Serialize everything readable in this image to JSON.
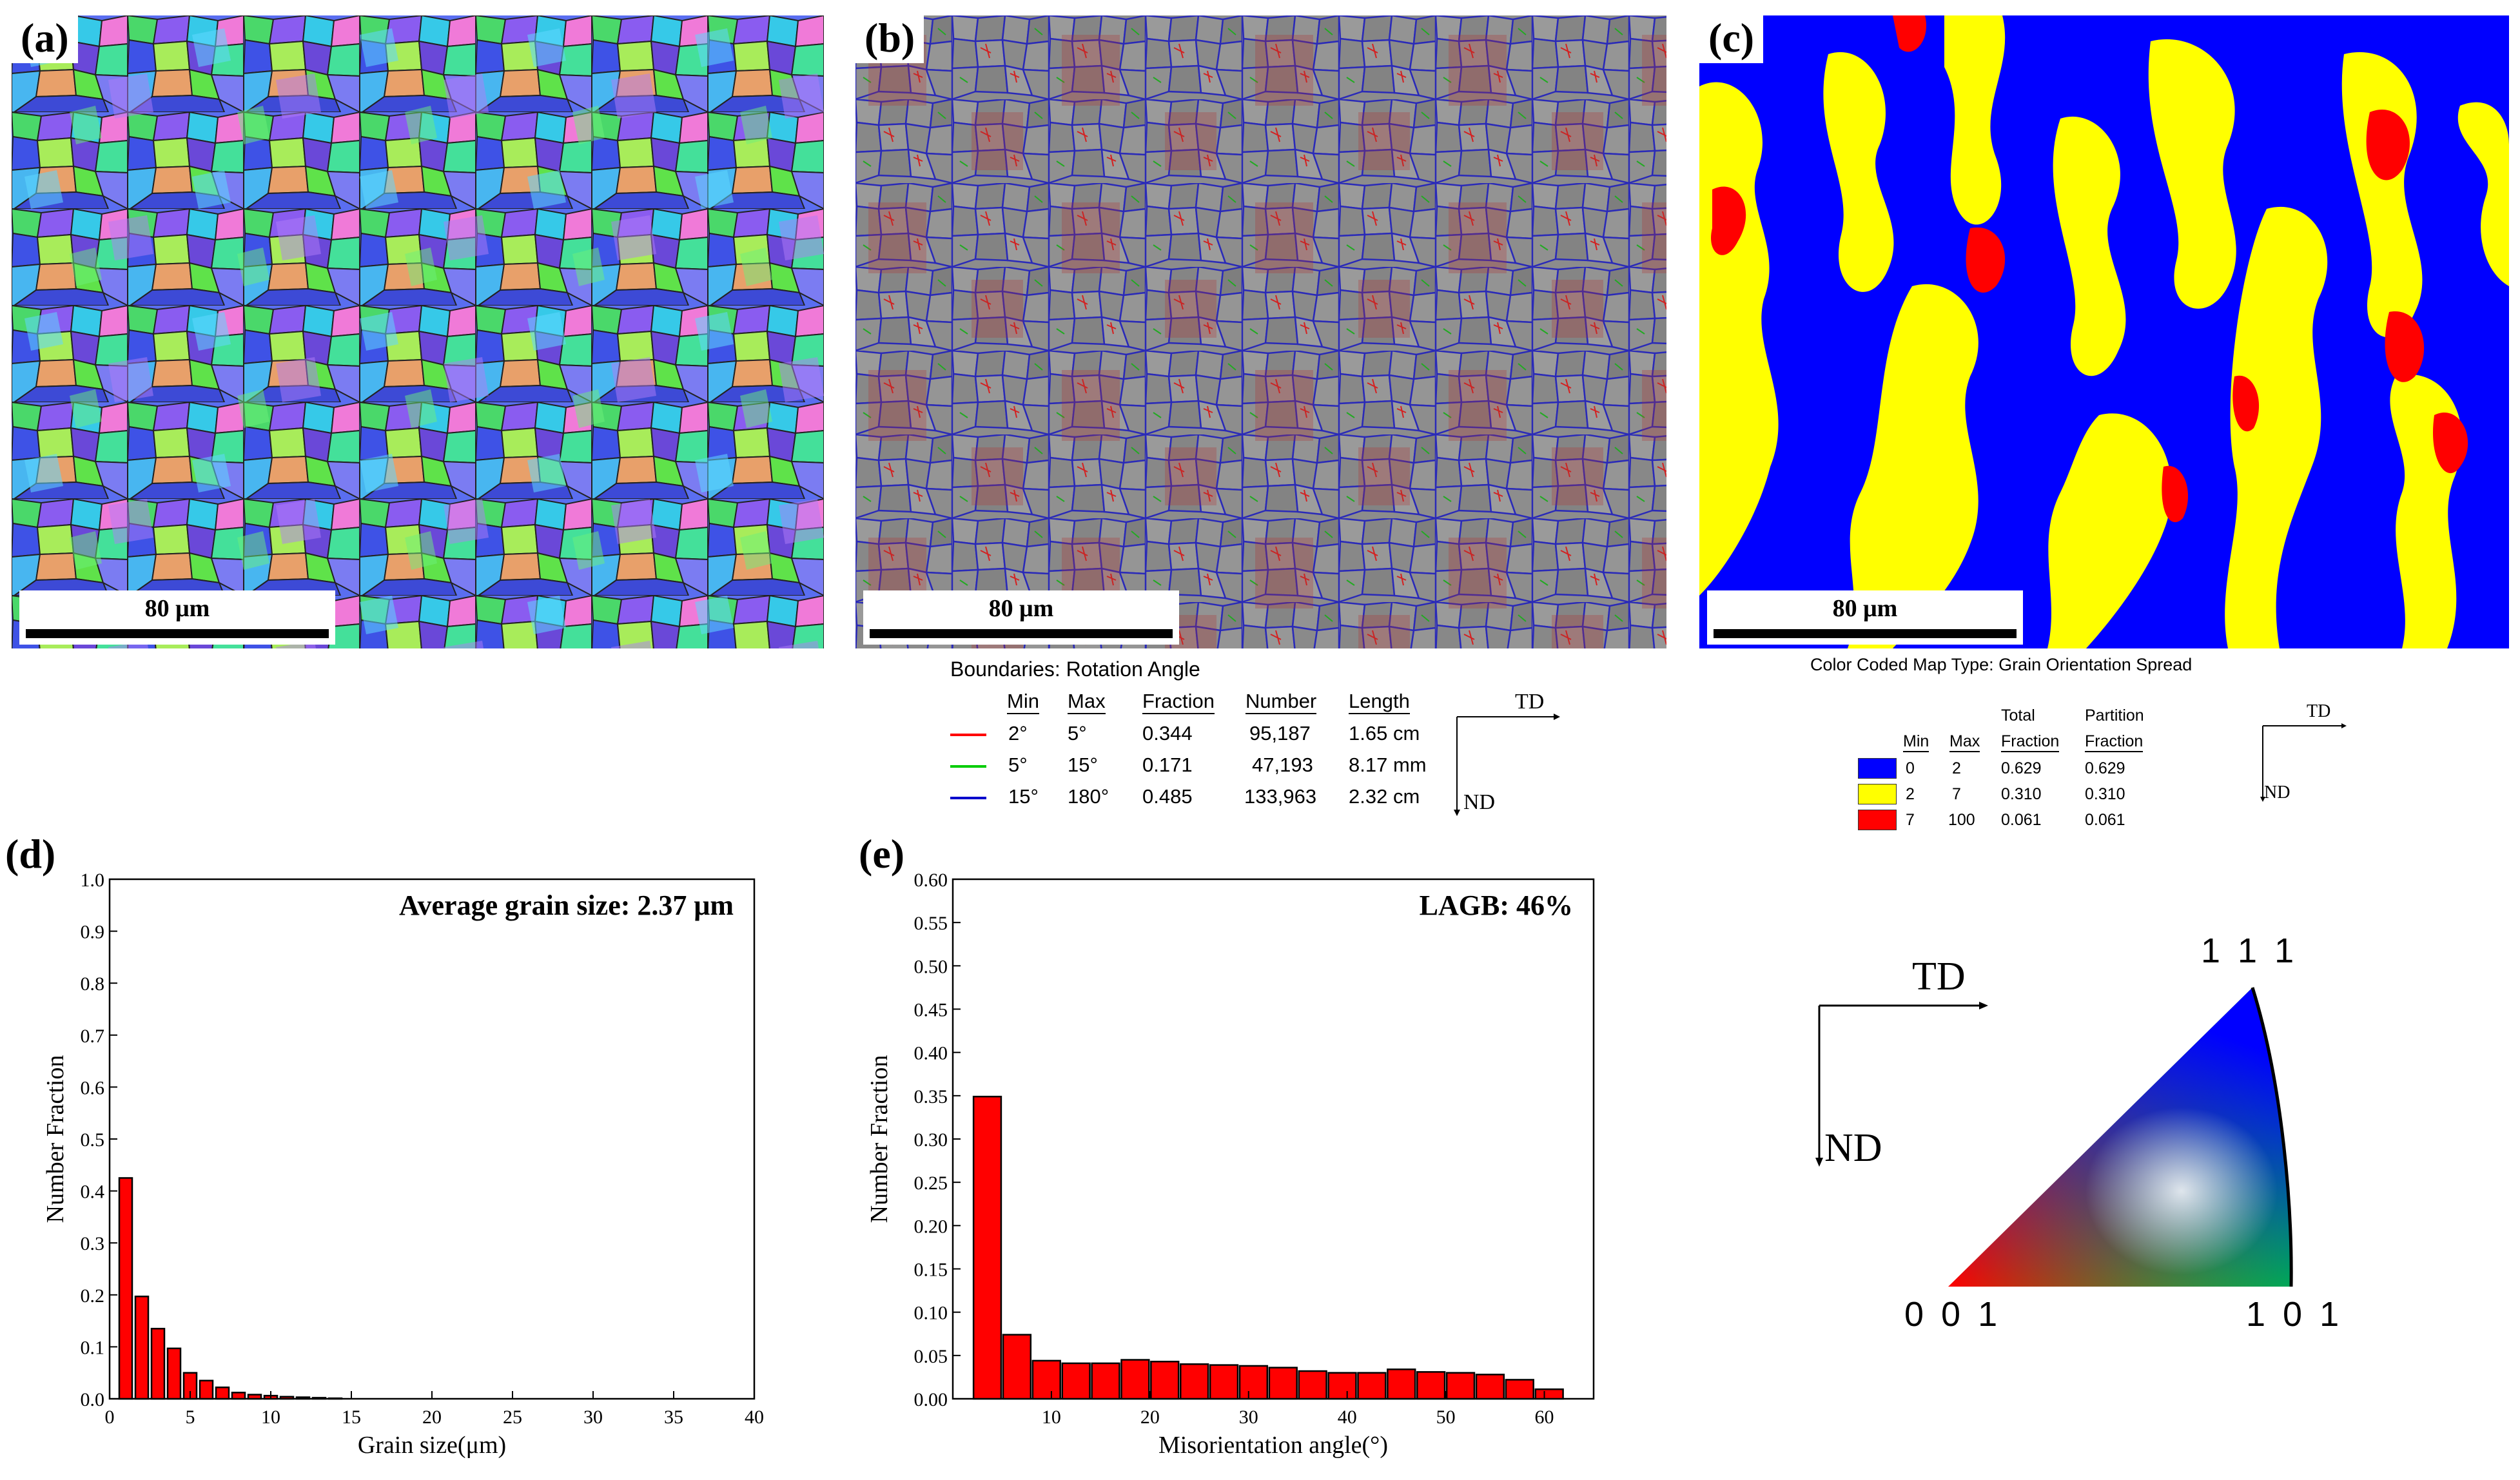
{
  "panels": {
    "a": {
      "label": "(a)",
      "scale": "80 μm"
    },
    "b": {
      "label": "(b)",
      "scale": "80 μm"
    },
    "c": {
      "label": "(c)",
      "scale": "80 μm"
    },
    "d": {
      "label": "(d)"
    },
    "e": {
      "label": "(e)"
    }
  },
  "boundaries": {
    "title": "Boundaries: Rotation Angle",
    "headers": [
      "Min",
      "Max",
      "Fraction",
      "Number",
      "Length"
    ],
    "rows": [
      {
        "min": "2°",
        "max": "5°",
        "fraction": "0.344",
        "number": "95,187",
        "length": "1.65 cm",
        "color": "#ff0000"
      },
      {
        "min": "5°",
        "max": "15°",
        "fraction": "0.171",
        "number": "47,193",
        "length": "8.17 mm",
        "color": "#00cc00"
      },
      {
        "min": "15°",
        "max": "180°",
        "fraction": "0.485",
        "number": "133,963",
        "length": "2.32 cm",
        "color": "#0000cc"
      }
    ],
    "td": "TD",
    "nd": "ND"
  },
  "gos": {
    "title": "Color Coded Map Type: Grain Orientation Spread",
    "headers": [
      "Min",
      "Max",
      "Total Fraction",
      "Partition Fraction"
    ],
    "header_line1": [
      "",
      "",
      "Total",
      "Partition"
    ],
    "header_line2": [
      "Min",
      "Max",
      "Fraction",
      "Fraction"
    ],
    "rows": [
      {
        "min": "0",
        "max": "2",
        "total": "0.629",
        "partition": "0.629",
        "color": "#0000ff"
      },
      {
        "min": "2",
        "max": "7",
        "total": "0.310",
        "partition": "0.310",
        "color": "#ffff00"
      },
      {
        "min": "7",
        "max": "100",
        "total": "0.061",
        "partition": "0.061",
        "color": "#ff0000"
      }
    ],
    "td": "TD",
    "nd": "ND"
  },
  "ipf": {
    "td": "TD",
    "nd": "ND",
    "corner_001": "0 0 1",
    "corner_101": "1 0 1",
    "corner_111": "1 1 1"
  },
  "chart_data": [
    {
      "type": "bar",
      "panel": "d",
      "annotation": "Average grain size: 2.37 μm",
      "xlabel": "Grain size(μm)",
      "ylabel": "Number Fraction",
      "xlim": [
        0,
        40
      ],
      "ylim": [
        0,
        1.0
      ],
      "xticks": [
        "0",
        "5",
        "10",
        "15",
        "20",
        "25",
        "30",
        "35",
        "40"
      ],
      "yticks": [
        "0.0",
        "0.1",
        "0.2",
        "0.3",
        "0.4",
        "0.5",
        "0.6",
        "0.7",
        "0.8",
        "0.9",
        "1.0"
      ],
      "bin_width": 0.8,
      "x": [
        1.0,
        2.0,
        3.0,
        4.0,
        5.0,
        6.0,
        7.0,
        8.0,
        9.0,
        10.0,
        11.0,
        12.0,
        13.0,
        14.0
      ],
      "values": [
        0.425,
        0.197,
        0.135,
        0.097,
        0.05,
        0.035,
        0.022,
        0.012,
        0.008,
        0.006,
        0.004,
        0.003,
        0.002,
        0.001
      ],
      "color": "#ff0000"
    },
    {
      "type": "bar",
      "panel": "e",
      "annotation": "LAGB: 46%",
      "xlabel": "Misorientation angle(°)",
      "ylabel": "Number Fraction",
      "xlim": [
        0,
        65
      ],
      "ylim": [
        0,
        0.6
      ],
      "xticks": [
        "10",
        "20",
        "30",
        "40",
        "50",
        "60"
      ],
      "xtick_values": [
        10,
        20,
        30,
        40,
        50,
        60
      ],
      "yticks": [
        "0.00",
        "0.05",
        "0.10",
        "0.15",
        "0.20",
        "0.25",
        "0.30",
        "0.35",
        "0.40",
        "0.45",
        "0.50",
        "0.55",
        "0.60"
      ],
      "bin_width": 2.8,
      "x": [
        3.5,
        6.5,
        9.5,
        12.5,
        15.5,
        18.5,
        21.5,
        24.5,
        27.5,
        30.5,
        33.5,
        36.5,
        39.5,
        42.5,
        45.5,
        48.5,
        51.5,
        54.5,
        57.5,
        60.5
      ],
      "values": [
        0.349,
        0.074,
        0.044,
        0.041,
        0.041,
        0.045,
        0.043,
        0.04,
        0.039,
        0.038,
        0.036,
        0.032,
        0.03,
        0.03,
        0.034,
        0.031,
        0.03,
        0.028,
        0.022,
        0.011
      ],
      "color": "#ff0000"
    }
  ]
}
